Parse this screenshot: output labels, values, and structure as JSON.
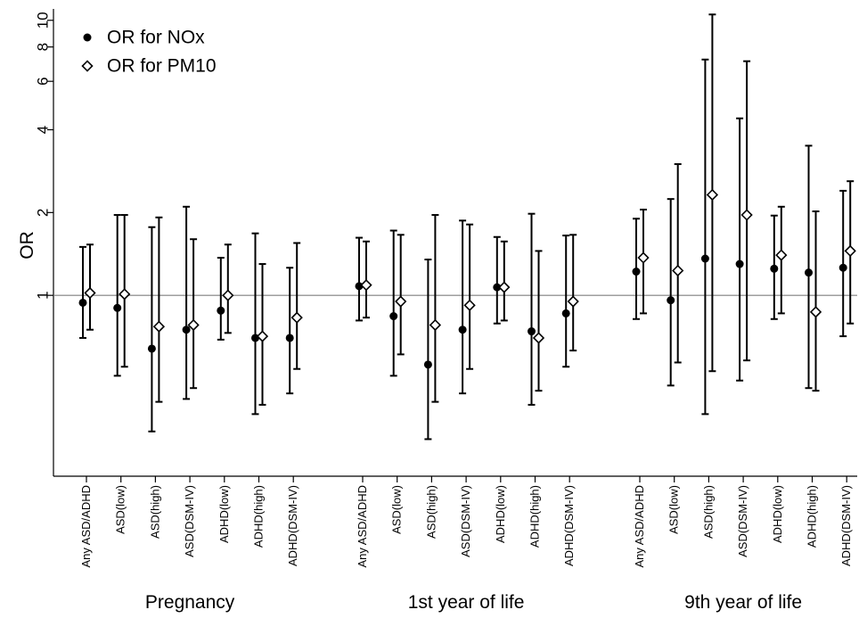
{
  "chart_data": {
    "type": "scatter",
    "ylabel": "OR",
    "yscale": "log",
    "ylim": [
      0.22,
      11
    ],
    "yticks": [
      1,
      2,
      4,
      6,
      8,
      10
    ],
    "ytick_labels": [
      "1",
      "2",
      "4",
      "6",
      "8",
      "10"
    ],
    "reference_line": 1,
    "legend": {
      "position": "top-left"
    },
    "categories": [
      "Any ASD/ADHD",
      "ASD(low)",
      "ASD(high)",
      "ASD(DSM-IV)",
      "ADHD(low)",
      "ADHD(high)",
      "ADHD(DSM-IV)",
      "Any ASD/ADHD",
      "ASD(low)",
      "ASD(high)",
      "ASD(DSM-IV)",
      "ADHD(low)",
      "ADHD(high)",
      "ADHD(DSM-IV)",
      "Any ASD/ADHD",
      "ASD(low)",
      "ASD(high)",
      "ASD(DSM-IV)",
      "ADHD(low)",
      "ADHD(high)",
      "ADHD(DSM-IV)"
    ],
    "groups": [
      {
        "label": "Pregnancy",
        "start": 0,
        "end": 6
      },
      {
        "label": "1st year of life",
        "start": 7,
        "end": 13
      },
      {
        "label": "9th year of life",
        "start": 14,
        "end": 20
      }
    ],
    "series": [
      {
        "name": "OR for NOx",
        "marker": "filled-circle",
        "values": [
          0.94,
          0.9,
          0.64,
          0.75,
          0.88,
          0.7,
          0.7,
          1.08,
          0.84,
          0.56,
          0.75,
          1.07,
          0.74,
          0.86,
          1.22,
          0.96,
          1.36,
          1.3,
          1.25,
          1.21,
          1.26
        ],
        "ci_low": [
          0.7,
          0.51,
          0.32,
          0.42,
          0.69,
          0.37,
          0.44,
          0.81,
          0.51,
          0.3,
          0.44,
          0.79,
          0.4,
          0.55,
          0.82,
          0.47,
          0.37,
          0.49,
          0.82,
          0.46,
          0.71
        ],
        "ci_high": [
          1.5,
          1.96,
          1.77,
          2.1,
          1.37,
          1.68,
          1.26,
          1.62,
          1.72,
          1.35,
          1.87,
          1.63,
          1.98,
          1.65,
          1.9,
          2.24,
          7.2,
          4.4,
          1.95,
          3.5,
          2.4
        ]
      },
      {
        "name": "OR for PM10",
        "marker": "hollow-diamond",
        "values": [
          1.02,
          1.01,
          0.77,
          0.78,
          1.0,
          0.71,
          0.83,
          1.09,
          0.95,
          0.78,
          0.92,
          1.07,
          0.7,
          0.95,
          1.37,
          1.23,
          2.32,
          1.96,
          1.4,
          0.87,
          1.45
        ],
        "ci_low": [
          0.75,
          0.55,
          0.41,
          0.46,
          0.73,
          0.4,
          0.54,
          0.83,
          0.61,
          0.41,
          0.54,
          0.81,
          0.45,
          0.63,
          0.86,
          0.57,
          0.53,
          0.58,
          0.86,
          0.45,
          0.79
        ],
        "ci_high": [
          1.53,
          1.96,
          1.92,
          1.6,
          1.53,
          1.3,
          1.55,
          1.57,
          1.66,
          1.96,
          1.81,
          1.57,
          1.45,
          1.66,
          2.05,
          3.0,
          10.5,
          7.1,
          2.1,
          2.02,
          2.6
        ]
      }
    ]
  }
}
